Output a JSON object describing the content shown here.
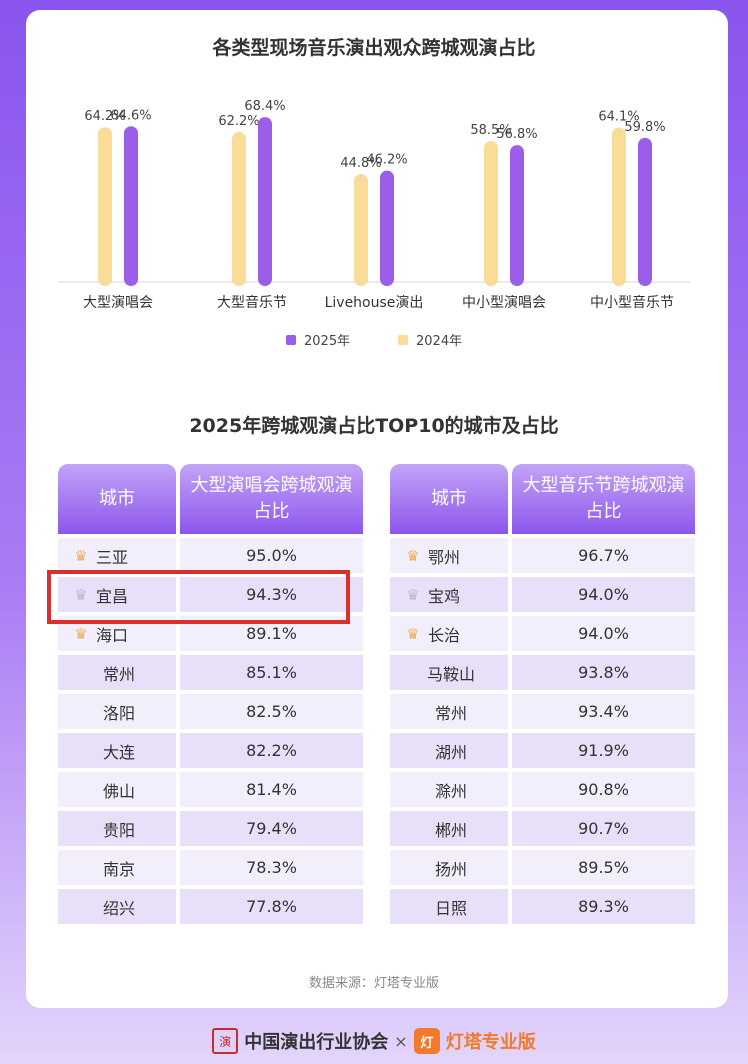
{
  "chart_data": [
    {
      "type": "bar",
      "title": "各类型现场音乐演出观众跨城观演占比",
      "categories": [
        "大型演唱会",
        "大型音乐节",
        "Livehouse演出",
        "中小型演唱会",
        "中小型音乐节"
      ],
      "series": [
        {
          "name": "2024年",
          "values": [
            64.2,
            62.2,
            44.8,
            58.5,
            64.1
          ],
          "labels": [
            "64.2%",
            "62.2%",
            "44.8%",
            "58.5%",
            "64.1%"
          ]
        },
        {
          "name": "2025年",
          "values": [
            64.6,
            68.4,
            46.2,
            56.8,
            59.8
          ],
          "labels": [
            "64.6%",
            "68.4%",
            "46.2%",
            "56.8%",
            "59.8%"
          ]
        }
      ],
      "legend": [
        "2025年",
        "2024年"
      ],
      "legend_position": "bottom",
      "colors": {
        "2024年": "#f8dc97",
        "2025年": "#9b5ee8"
      },
      "ylim": [
        0,
        75
      ],
      "grid": false
    },
    {
      "type": "table",
      "title": "2025年跨城观演占比TOP10的城市及占比",
      "tables": [
        {
          "headers": [
            "城市",
            "大型演唱会跨城观演占比"
          ],
          "rows": [
            {
              "city": "三亚",
              "value": "95.0%",
              "crown": "gold"
            },
            {
              "city": "宜昌",
              "value": "94.3%",
              "crown": "silver"
            },
            {
              "city": "海口",
              "value": "89.1%",
              "crown": "gold"
            },
            {
              "city": "常州",
              "value": "85.1%",
              "crown": ""
            },
            {
              "city": "洛阳",
              "value": "82.5%",
              "crown": ""
            },
            {
              "city": "大连",
              "value": "82.2%",
              "crown": ""
            },
            {
              "city": "佛山",
              "value": "81.4%",
              "crown": ""
            },
            {
              "city": "贵阳",
              "value": "79.4%",
              "crown": ""
            },
            {
              "city": "南京",
              "value": "78.3%",
              "crown": ""
            },
            {
              "city": "绍兴",
              "value": "77.8%",
              "crown": ""
            }
          ]
        },
        {
          "headers": [
            "城市",
            "大型音乐节跨城观演占比"
          ],
          "rows": [
            {
              "city": "鄂州",
              "value": "96.7%",
              "crown": "gold"
            },
            {
              "city": "宝鸡",
              "value": "94.0%",
              "crown": "silver"
            },
            {
              "city": "长治",
              "value": "94.0%",
              "crown": "gold"
            },
            {
              "city": "马鞍山",
              "value": "93.8%",
              "crown": ""
            },
            {
              "city": "常州",
              "value": "93.4%",
              "crown": ""
            },
            {
              "city": "湖州",
              "value": "91.9%",
              "crown": ""
            },
            {
              "city": "滁州",
              "value": "90.8%",
              "crown": ""
            },
            {
              "city": "郴州",
              "value": "90.7%",
              "crown": ""
            },
            {
              "city": "扬州",
              "value": "89.5%",
              "crown": ""
            },
            {
              "city": "日照",
              "value": "89.3%",
              "crown": ""
            }
          ]
        }
      ]
    }
  ],
  "source": "数据来源：灯塔专业版",
  "footer": {
    "association": "中国演出行业协会",
    "times": "×",
    "brand": "灯塔专业版",
    "seal_icon": "association-seal-icon",
    "brand_icon": "dengta-logo-icon"
  },
  "colors": {
    "accent": "#8c56ec",
    "highlight_border": "#d9302c"
  }
}
